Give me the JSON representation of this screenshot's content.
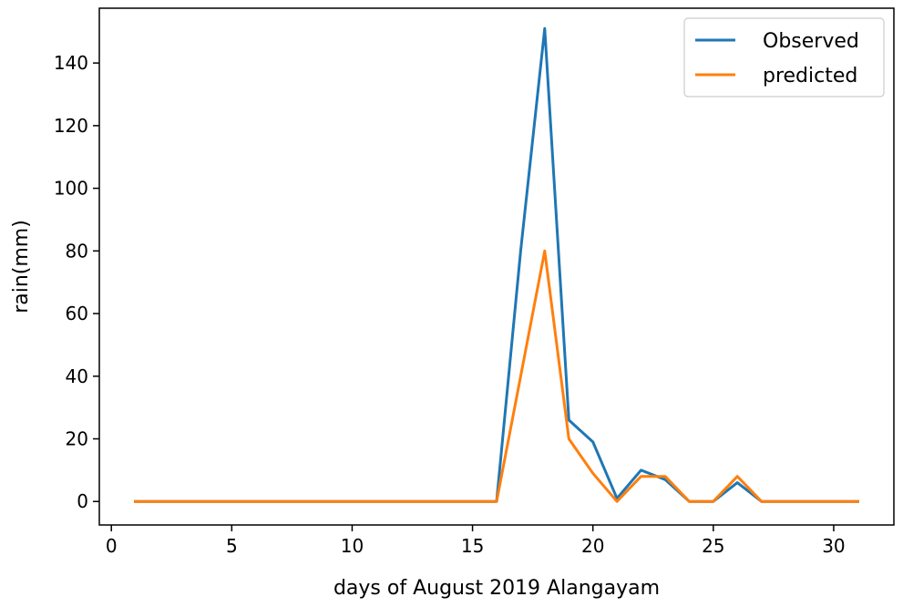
{
  "chart_data": {
    "type": "line",
    "title": "",
    "xlabel": "days of August 2019 Alangayam",
    "ylabel": "rain(mm)",
    "xlim": [
      -0.5,
      32.5
    ],
    "ylim": [
      -7.5,
      157.5
    ],
    "xticks": [
      0,
      5,
      10,
      15,
      20,
      25,
      30
    ],
    "yticks": [
      0,
      20,
      40,
      60,
      80,
      100,
      120,
      140
    ],
    "grid": false,
    "legend": {
      "position": "top-right"
    },
    "x": [
      1,
      2,
      3,
      4,
      5,
      6,
      7,
      8,
      9,
      10,
      11,
      12,
      13,
      14,
      15,
      16,
      17,
      18,
      19,
      20,
      21,
      22,
      23,
      24,
      25,
      26,
      27,
      28,
      29,
      30,
      31
    ],
    "series": [
      {
        "name": "Observed",
        "color": "#1f77b4",
        "values": [
          0,
          0,
          0,
          0,
          0,
          0,
          0,
          0,
          0,
          0,
          0,
          0,
          0,
          0,
          0,
          0,
          80,
          151,
          26,
          19,
          1,
          10,
          7,
          0,
          0,
          6,
          0,
          0,
          0,
          0,
          0
        ]
      },
      {
        "name": "predicted",
        "color": "#ff7f0e",
        "values": [
          0,
          0,
          0,
          0,
          0,
          0,
          0,
          0,
          0,
          0,
          0,
          0,
          0,
          0,
          0,
          0,
          40,
          80,
          20,
          9,
          0,
          8,
          8,
          0,
          0,
          8,
          0,
          0,
          0,
          0,
          0
        ]
      }
    ]
  }
}
